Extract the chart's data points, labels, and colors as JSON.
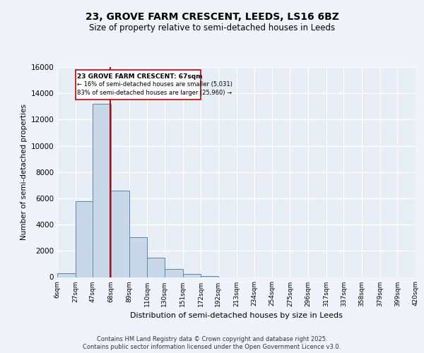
{
  "title": "23, GROVE FARM CRESCENT, LEEDS, LS16 6BZ",
  "subtitle": "Size of property relative to semi-detached houses in Leeds",
  "xlabel": "Distribution of semi-detached houses by size in Leeds",
  "ylabel": "Number of semi-detached properties",
  "bin_edges": [
    6,
    27,
    47,
    68,
    89,
    110,
    130,
    151,
    172,
    192,
    213,
    234,
    254,
    275,
    296,
    317,
    337,
    358,
    379,
    399,
    420
  ],
  "bin_labels": [
    "6sqm",
    "27sqm",
    "47sqm",
    "68sqm",
    "89sqm",
    "110sqm",
    "130sqm",
    "151sqm",
    "172sqm",
    "192sqm",
    "213sqm",
    "234sqm",
    "254sqm",
    "275sqm",
    "296sqm",
    "317sqm",
    "337sqm",
    "358sqm",
    "379sqm",
    "399sqm",
    "420sqm"
  ],
  "bar_heights": [
    270,
    5800,
    13200,
    6600,
    3050,
    1480,
    620,
    230,
    100,
    0,
    0,
    0,
    0,
    0,
    0,
    0,
    0,
    0,
    0,
    0
  ],
  "bar_color": "#c8d8e8",
  "bar_edge_color": "#5588aa",
  "property_size": 67,
  "vline_color": "#cc0000",
  "annotation_text_line1": "23 GROVE FARM CRESCENT: 67sqm",
  "annotation_text_line2": "← 16% of semi-detached houses are smaller (5,031)",
  "annotation_text_line3": "83% of semi-detached houses are larger (25,960) →",
  "ylim": [
    0,
    16000
  ],
  "yticks": [
    0,
    2000,
    4000,
    6000,
    8000,
    10000,
    12000,
    14000,
    16000
  ],
  "footer_line1": "Contains HM Land Registry data © Crown copyright and database right 2025.",
  "footer_line2": "Contains public sector information licensed under the Open Government Licence v3.0.",
  "bg_color": "#f0f4fa",
  "plot_bg_color": "#e8eef6"
}
